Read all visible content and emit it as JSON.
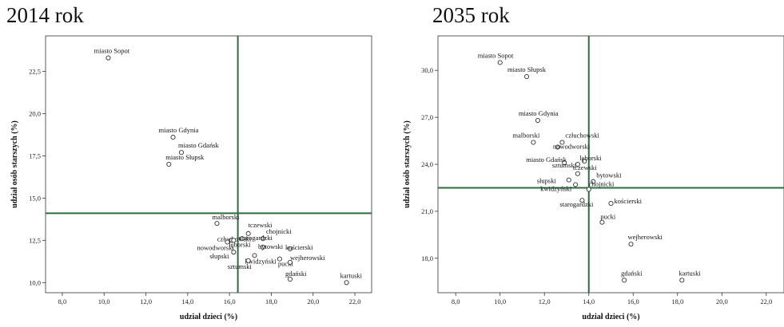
{
  "chart_data": [
    {
      "type": "scatter",
      "title": "2014 rok",
      "xlabel": "udział dzieci (%)",
      "ylabel": "udział osób starszych (%)",
      "xlim": [
        7.2,
        22.8
      ],
      "ylim": [
        9.4,
        24.6
      ],
      "xticks": [
        8.0,
        10.0,
        12.0,
        14.0,
        16.0,
        18.0,
        20.0,
        22.0
      ],
      "xtick_labels": [
        "8,0",
        "10,0",
        "12,0",
        "14,0",
        "16,0",
        "18,0",
        "20,0",
        "22,0"
      ],
      "yticks": [
        10.0,
        12.5,
        15.0,
        17.5,
        20.0,
        22.5
      ],
      "ytick_labels": [
        "10,0",
        "12,5",
        "15,0",
        "17,5",
        "20,0",
        "22,5"
      ],
      "ref_x": 16.4,
      "ref_y": 14.1,
      "ref_line_color": "#2e6b3f",
      "points": [
        {
          "label": "miasto Sopot",
          "x": 10.2,
          "y": 23.3
        },
        {
          "label": "miasto Gdynia",
          "x": 13.3,
          "y": 18.6
        },
        {
          "label": "miasto Gdańsk",
          "x": 13.7,
          "y": 17.7
        },
        {
          "label": "miasto Słupsk",
          "x": 13.1,
          "y": 17.0
        },
        {
          "label": "malborski",
          "x": 15.4,
          "y": 13.5
        },
        {
          "label": "tczewski",
          "x": 16.9,
          "y": 12.9
        },
        {
          "label": "chojnicki",
          "x": 17.6,
          "y": 12.6
        },
        {
          "label": "człuchowski",
          "x": 16.1,
          "y": 12.5
        },
        {
          "label": "starogardzki",
          "x": 16.6,
          "y": 12.6
        },
        {
          "label": "lęborski",
          "x": 16.2,
          "y": 12.5
        },
        {
          "label": "kościerski",
          "x": 18.9,
          "y": 12.0
        },
        {
          "label": "nowodworski",
          "x": 15.9,
          "y": 12.4
        },
        {
          "label": "bytowski",
          "x": 17.6,
          "y": 12.1
        },
        {
          "label": "słupski",
          "x": 16.2,
          "y": 11.8
        },
        {
          "label": "kwidzyński",
          "x": 17.2,
          "y": 11.6
        },
        {
          "label": "pucki",
          "x": 18.4,
          "y": 11.4
        },
        {
          "label": "wejherowski",
          "x": 18.9,
          "y": 11.2
        },
        {
          "label": "gdański",
          "x": 18.9,
          "y": 10.2
        },
        {
          "label": "sztumski",
          "x": 16.9,
          "y": 11.3
        },
        {
          "label": "kartuski",
          "x": 21.6,
          "y": 10.0
        }
      ]
    },
    {
      "type": "scatter",
      "title": "2035 rok",
      "xlabel": "udział dzieci (%)",
      "ylabel": "udział osób starszych (%)",
      "xlim": [
        7.2,
        22.8
      ],
      "ylim": [
        15.8,
        32.2
      ],
      "xticks": [
        8.0,
        10.0,
        12.0,
        14.0,
        16.0,
        18.0,
        20.0,
        22.0
      ],
      "xtick_labels": [
        "8,0",
        "10,0",
        "12,0",
        "14,0",
        "16,0",
        "18,0",
        "20,0",
        "22,0"
      ],
      "yticks": [
        18.0,
        21.0,
        24.0,
        27.0,
        30.0
      ],
      "ytick_labels": [
        "18,0",
        "21,0",
        "24,0",
        "27,0",
        "30,0"
      ],
      "ref_x": 14.0,
      "ref_y": 22.5,
      "ref_line_color": "#2e6b3f",
      "points": [
        {
          "label": "miasto Sopot",
          "x": 10.0,
          "y": 30.5
        },
        {
          "label": "miasto Słupsk",
          "x": 11.2,
          "y": 29.6
        },
        {
          "label": "miasto Gdynia",
          "x": 11.7,
          "y": 26.8
        },
        {
          "label": "malborski",
          "x": 11.5,
          "y": 25.4
        },
        {
          "label": "człuchowski",
          "x": 12.8,
          "y": 25.4
        },
        {
          "label": "nowodworski",
          "x": 12.6,
          "y": 25.1
        },
        {
          "label": "miasto Gdańsk",
          "x": 12.9,
          "y": 24.1
        },
        {
          "label": "lęborski",
          "x": 13.8,
          "y": 24.2
        },
        {
          "label": "sztumski",
          "x": 13.5,
          "y": 24.0
        },
        {
          "label": "tczewski",
          "x": 13.5,
          "y": 23.4
        },
        {
          "label": "słupski",
          "x": 13.1,
          "y": 23.0
        },
        {
          "label": "bytowski",
          "x": 14.2,
          "y": 22.9
        },
        {
          "label": "kwidzyński",
          "x": 13.4,
          "y": 22.7
        },
        {
          "label": "chojnicki",
          "x": 14.0,
          "y": 22.4
        },
        {
          "label": "starogardzki",
          "x": 13.7,
          "y": 21.7
        },
        {
          "label": "kościerski",
          "x": 15.0,
          "y": 21.5
        },
        {
          "label": "pucki",
          "x": 14.6,
          "y": 20.3
        },
        {
          "label": "wejherowski",
          "x": 15.9,
          "y": 18.9
        },
        {
          "label": "gdański",
          "x": 15.6,
          "y": 16.6
        },
        {
          "label": "kartuski",
          "x": 18.2,
          "y": 16.6
        }
      ]
    }
  ]
}
